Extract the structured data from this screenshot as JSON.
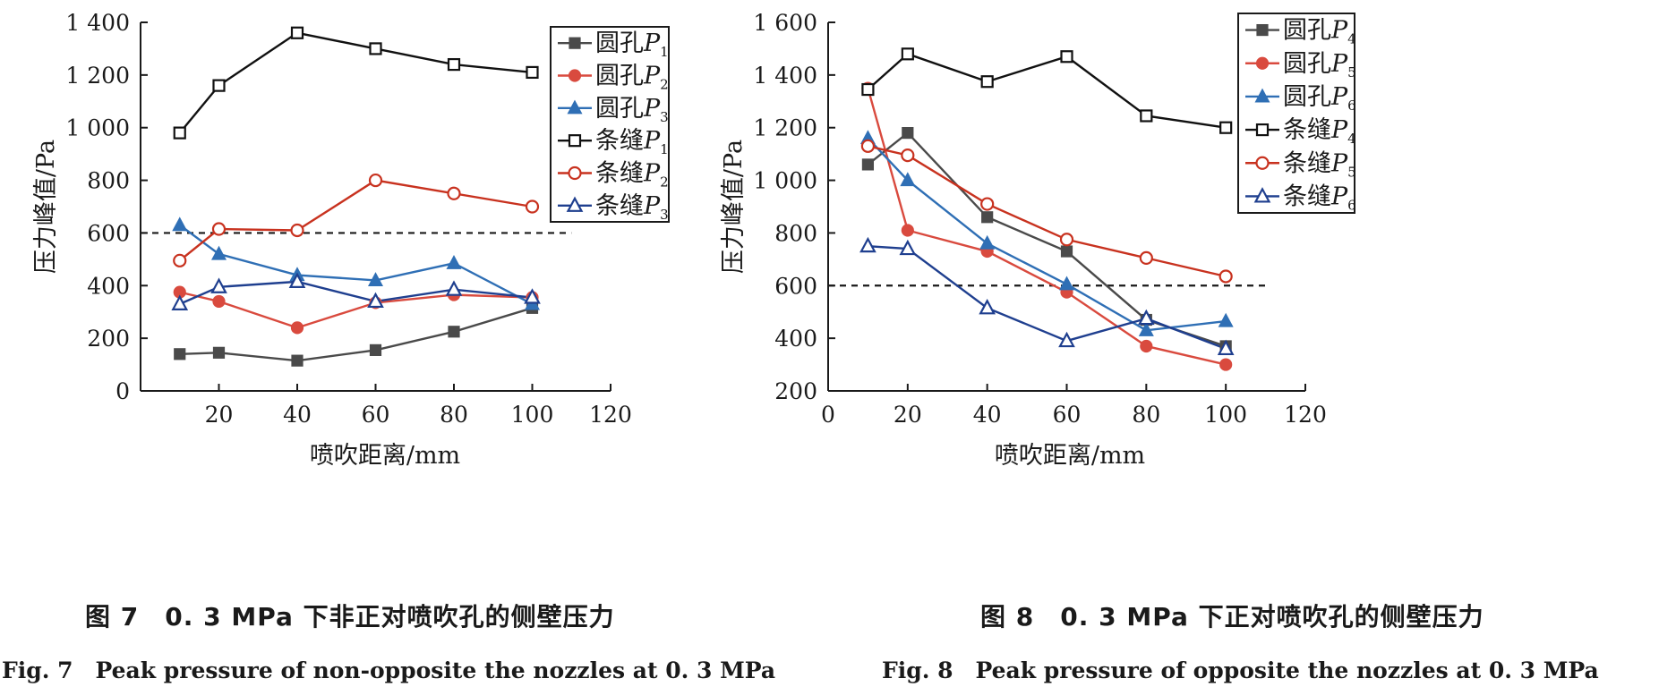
{
  "chart_data": [
    {
      "type": "line",
      "xlabel": "喷吹距离/mm",
      "ylabel": "压力峰值/Pa",
      "xlim": [
        0,
        120
      ],
      "ylim": [
        0,
        1400
      ],
      "xticks": [
        20,
        40,
        60,
        80,
        100,
        120
      ],
      "yticks": [
        0,
        200,
        400,
        600,
        800,
        1000,
        1200,
        1400
      ],
      "ytick_labels": [
        "0",
        "200",
        "400",
        "600",
        "800",
        "1 000",
        "1 200",
        "1 400"
      ],
      "reference_line": {
        "y": 600,
        "style": "dashed"
      },
      "grid": false,
      "legend_placement": "top-right",
      "x": [
        10,
        20,
        40,
        60,
        80,
        100
      ],
      "series": [
        {
          "name": "圆孔P1",
          "label": "圆孔",
          "sym": "P",
          "sub": "1",
          "color": "#4a4a4a",
          "marker": "square-filled",
          "values": [
            140,
            145,
            115,
            155,
            225,
            315
          ]
        },
        {
          "name": "圆孔P2",
          "label": "圆孔",
          "sym": "P",
          "sub": "2",
          "color": "#d94a3e",
          "marker": "circle-filled",
          "values": [
            375,
            340,
            240,
            335,
            365,
            355
          ]
        },
        {
          "name": "圆孔P3",
          "label": "圆孔",
          "sym": "P",
          "sub": "3",
          "color": "#2f6fb5",
          "marker": "triangle-filled",
          "values": [
            630,
            520,
            440,
            420,
            485,
            330
          ]
        },
        {
          "name": "条缝P1",
          "label": "条缝",
          "sym": "P",
          "sub": "1",
          "color": "#111111",
          "marker": "square-open",
          "values": [
            980,
            1160,
            1360,
            1300,
            1240,
            1210
          ]
        },
        {
          "name": "条缝P2",
          "label": "条缝",
          "sym": "P",
          "sub": "2",
          "color": "#c8321f",
          "marker": "circle-open",
          "values": [
            495,
            615,
            610,
            800,
            750,
            700
          ]
        },
        {
          "name": "条缝P3",
          "label": "条缝",
          "sym": "P",
          "sub": "3",
          "color": "#1f3f8f",
          "marker": "triangle-open",
          "values": [
            330,
            395,
            415,
            340,
            385,
            355
          ]
        }
      ]
    },
    {
      "type": "line",
      "xlabel": "喷吹距离/mm",
      "ylabel": "压力峰值/Pa",
      "xlim": [
        0,
        120
      ],
      "ylim": [
        200,
        1600
      ],
      "xticks": [
        0,
        20,
        40,
        60,
        80,
        100,
        120
      ],
      "yticks": [
        200,
        400,
        600,
        800,
        1000,
        1200,
        1400,
        1600
      ],
      "ytick_labels": [
        "200",
        "400",
        "600",
        "800",
        "1 000",
        "1 200",
        "1 400",
        "1 600"
      ],
      "reference_line": {
        "y": 600,
        "style": "dashed"
      },
      "grid": false,
      "legend_placement": "top-right",
      "x": [
        10,
        20,
        40,
        60,
        80,
        100
      ],
      "series": [
        {
          "name": "圆孔P4",
          "label": "圆孔",
          "sym": "P",
          "sub": "4",
          "color": "#4a4a4a",
          "marker": "square-filled",
          "values": [
            1060,
            1180,
            860,
            730,
            470,
            370
          ]
        },
        {
          "name": "圆孔P5",
          "label": "圆孔",
          "sym": "P",
          "sub": "5",
          "color": "#d94a3e",
          "marker": "circle-filled",
          "values": [
            1350,
            810,
            730,
            575,
            370,
            300
          ]
        },
        {
          "name": "圆孔P6",
          "label": "圆孔",
          "sym": "P",
          "sub": "6",
          "color": "#2f6fb5",
          "marker": "triangle-filled",
          "values": [
            1160,
            1000,
            760,
            605,
            430,
            465
          ]
        },
        {
          "name": "条缝P4",
          "label": "条缝",
          "sym": "P",
          "sub": "4",
          "color": "#111111",
          "marker": "square-open",
          "values": [
            1345,
            1480,
            1375,
            1470,
            1245,
            1200
          ]
        },
        {
          "name": "条缝P5",
          "label": "条缝",
          "sym": "P",
          "sub": "5",
          "color": "#c8321f",
          "marker": "circle-open",
          "values": [
            1130,
            1095,
            910,
            775,
            705,
            635
          ]
        },
        {
          "name": "条缝P6",
          "label": "条缝",
          "sym": "P",
          "sub": "6",
          "color": "#1f3f8f",
          "marker": "triangle-open",
          "values": [
            750,
            740,
            515,
            390,
            475,
            360
          ]
        }
      ]
    }
  ],
  "captions": [
    {
      "cn": "图 7　0. 3 MPa 下非正对喷吹孔的侧壁压力",
      "en": "Fig. 7　Peak pressure of non-opposite the nozzles at 0. 3 MPa"
    },
    {
      "cn": "图 8　0. 3 MPa 下正对喷吹孔的侧壁压力",
      "en": "Fig. 8　Peak pressure of opposite the nozzles at 0. 3 MPa"
    }
  ]
}
